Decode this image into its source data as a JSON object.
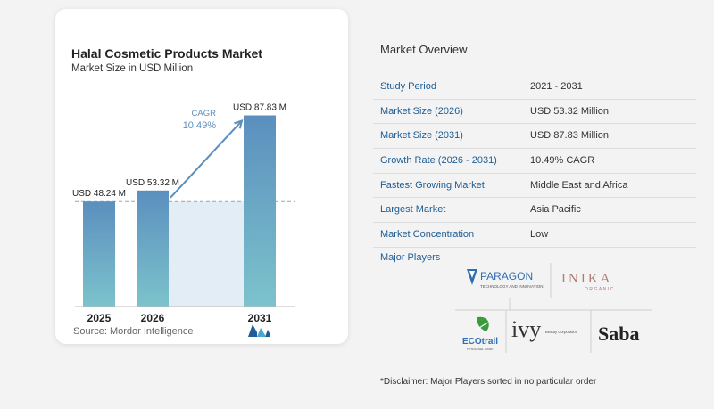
{
  "chart": {
    "title": "Halal Cosmetic Products Market",
    "subtitle": "Market Size in USD Million",
    "source": "Source:  Mordor Intelligence",
    "cagr_label": "CAGR",
    "cagr_value": "10.49%"
  },
  "chart_data": {
    "type": "bar",
    "categories": [
      "2025",
      "2026",
      "2031"
    ],
    "values": [
      48.24,
      53.32,
      87.83
    ],
    "data_labels": [
      "USD 48.24 M",
      "USD 53.32 M",
      "USD 87.83 M"
    ],
    "title": "Halal Cosmetic Products Market",
    "subtitle": "Market Size in USD Million",
    "xlabel": "",
    "ylabel": "",
    "ylim": [
      0,
      95
    ],
    "grid": false,
    "annotations": [
      "CAGR",
      "10.49%"
    ]
  },
  "overview": {
    "title": "Market Overview",
    "rows": [
      {
        "label": "Study Period",
        "value": "2021 - 2031"
      },
      {
        "label": "Market Size (2026)",
        "value": "USD 53.32 Million"
      },
      {
        "label": "Market Size (2031)",
        "value": "USD 87.83 Million"
      },
      {
        "label": "Growth Rate (2026 - 2031)",
        "value": "10.49% CAGR"
      },
      {
        "label": "Fastest Growing Market",
        "value": "Middle East and Africa"
      },
      {
        "label": "Largest Market",
        "value": "Asia Pacific"
      },
      {
        "label": "Market Concentration",
        "value": "Low"
      }
    ]
  },
  "players": {
    "title": "Major Players",
    "logos": [
      {
        "name": "PARAGON",
        "sub": "TECHNOLOGY AND INNOVATION"
      },
      {
        "name": "INIKA",
        "sub": "ORGANIC"
      },
      {
        "name": "ECOtrail",
        "sub": "PERSONAL CARE"
      },
      {
        "name": "ivy",
        "sub": "Beauty Corporation"
      },
      {
        "name": "Saba"
      }
    ]
  },
  "disclaimer": "*Disclaimer: Major Players sorted in no particular order",
  "colors": {
    "bar_top": "#5b8fbe",
    "bar_bottom": "#7cc3cc",
    "accent_blue": "#1f5d94",
    "arrow": "#5b8fbe"
  }
}
